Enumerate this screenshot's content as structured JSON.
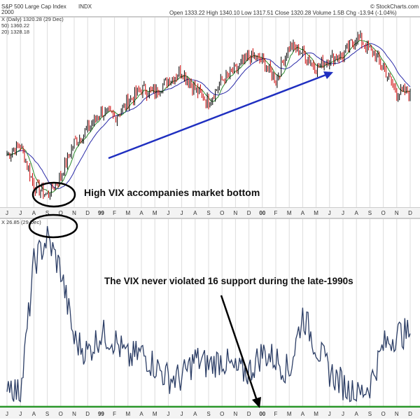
{
  "header": {
    "title": "S&P 500 Large Cap Index",
    "exchange": "INDX",
    "date_line": "2000",
    "watermark": "© StockCharts.com",
    "ohlc": "Open 1333.22  High 1340.10  Low 1317.51  Close 1320.28  Volume 1.5B  Chg -13.94 (-1.04%)",
    "series_line_1": "X (Daily) 1320.28 (29 Dec)",
    "series_line_2": "50) 1360.22",
    "series_line_3": "20) 1328.18",
    "vix_line": "X 26.85 (29 Dec)"
  },
  "annotations": {
    "top": "High VIX accompanies market bottom",
    "bottom": "The VIX never violated 16 support during the late-1990s"
  },
  "axis": {
    "ticks": [
      "J",
      "J",
      "A",
      "S",
      "O",
      "N",
      "D",
      "99",
      "F",
      "M",
      "A",
      "M",
      "J",
      "J",
      "A",
      "S",
      "O",
      "N",
      "D",
      "00",
      "F",
      "M",
      "A",
      "M",
      "J",
      "J",
      "A",
      "S",
      "O",
      "N",
      "D"
    ]
  },
  "colors": {
    "price": "#000000",
    "up": "#000000",
    "down": "#cc0000",
    "sma_fast": "#2a8a2a",
    "sma_slow": "#2b2ba8",
    "vix": "#2c3e66",
    "support": "#2e9a2e",
    "trend_arrow": "#1f2fc0",
    "annotation_arrow": "#000000",
    "grid": "#dcdcdc"
  },
  "chart_data": [
    {
      "type": "line",
      "title": "S&P 500 Large Cap Index",
      "x_range": [
        "1998-06",
        "2000-12"
      ],
      "series": [
        {
          "name": "S&P 500 Large Cap Index",
          "x": [
            "1998-06",
            "1998-07",
            "1998-08",
            "1998-09",
            "1998-10",
            "1998-11",
            "1998-12",
            "1999-01",
            "1999-02",
            "1999-03",
            "1999-04",
            "1999-05",
            "1999-06",
            "1999-07",
            "1999-08",
            "1999-09",
            "1999-10",
            "1999-11",
            "1999-12",
            "2000-01",
            "2000-02",
            "2000-03",
            "2000-04",
            "2000-05",
            "2000-06",
            "2000-07",
            "2000-08",
            "2000-09",
            "2000-10",
            "2000-11",
            "2000-12"
          ],
          "values": [
            1120,
            1150,
            1020,
            990,
            1050,
            1160,
            1200,
            1260,
            1240,
            1290,
            1330,
            1320,
            1360,
            1390,
            1330,
            1290,
            1360,
            1390,
            1440,
            1420,
            1360,
            1470,
            1450,
            1400,
            1430,
            1440,
            1500,
            1460,
            1400,
            1320,
            1320
          ]
        }
      ]
    },
    {
      "type": "line",
      "title": "VIX",
      "x_range": [
        "1998-06",
        "2000-12"
      ],
      "series": [
        {
          "name": "VIX",
          "x": [
            "1998-06",
            "1998-07",
            "1998-08",
            "1998-09",
            "1998-10",
            "1998-11",
            "1998-12",
            "1999-01",
            "1999-02",
            "1999-03",
            "1999-04",
            "1999-05",
            "1999-06",
            "1999-07",
            "1999-08",
            "1999-09",
            "1999-10",
            "1999-11",
            "1999-12",
            "2000-01",
            "2000-02",
            "2000-03",
            "2000-04",
            "2000-05",
            "2000-06",
            "2000-07",
            "2000-08",
            "2000-09",
            "2000-10",
            "2000-11",
            "2000-12"
          ],
          "values": [
            20,
            17,
            38,
            42,
            37,
            26,
            24,
            27,
            26,
            23,
            24,
            22,
            20,
            20,
            23,
            22,
            23,
            21,
            21,
            24,
            23,
            21,
            30,
            25,
            21,
            19,
            17,
            19,
            25,
            27,
            27
          ]
        }
      ],
      "support": 16
    }
  ]
}
